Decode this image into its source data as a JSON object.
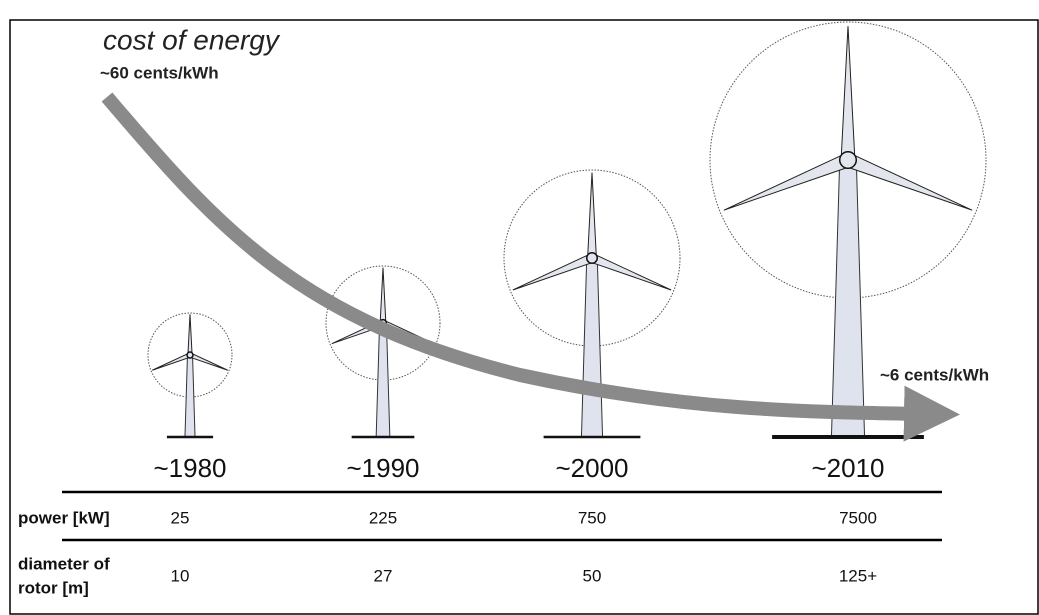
{
  "title": "cost of energy",
  "cost_start": "~60 cents/kWh",
  "cost_end": "~6 cents/kWh",
  "years": [
    "~1980",
    "~1990",
    "~2000",
    "~2010"
  ],
  "rows": [
    {
      "label": [
        "power [kW]"
      ],
      "cells": [
        "25",
        "225",
        "750",
        "7500"
      ]
    },
    {
      "label": [
        "diameter of",
        "rotor [m]"
      ],
      "cells": [
        "10",
        "27",
        "50",
        "125+"
      ]
    }
  ]
}
